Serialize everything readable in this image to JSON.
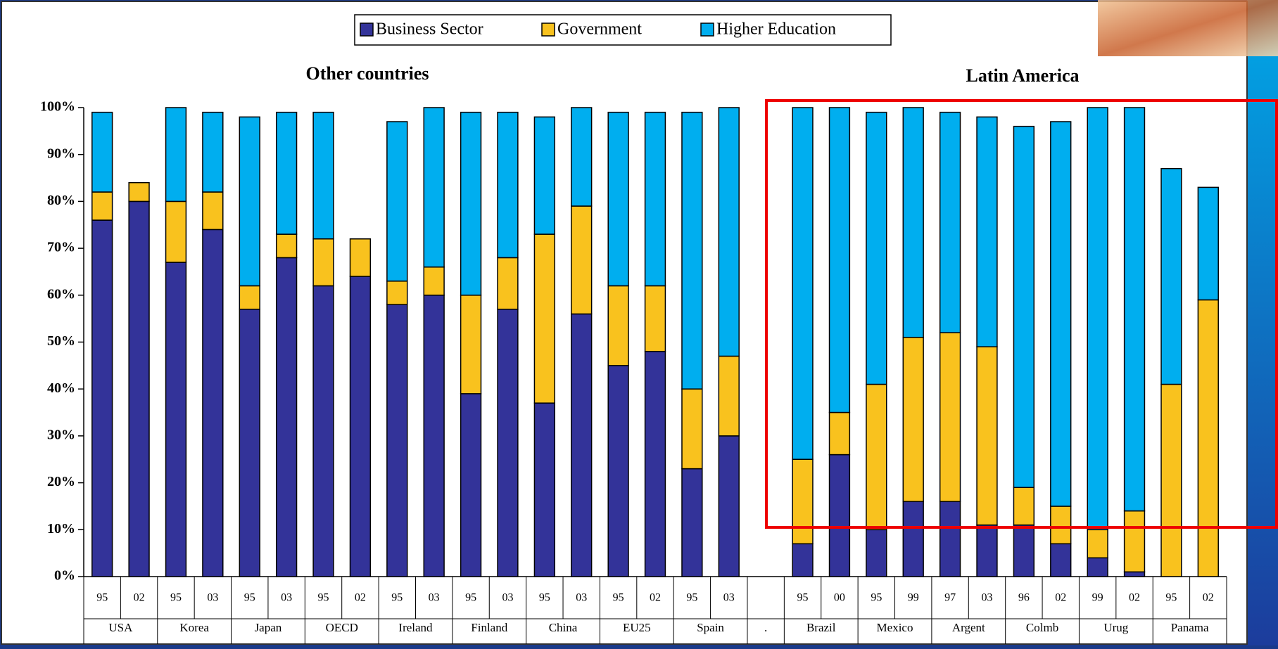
{
  "chart_data": {
    "type": "stacked_bar",
    "legend_position": "top",
    "section_titles": [
      "Other countries",
      "Latin America"
    ],
    "groups": [
      {
        "label": "USA",
        "years": [
          "95",
          "02"
        ]
      },
      {
        "label": "Korea",
        "years": [
          "95",
          "03"
        ]
      },
      {
        "label": "Japan",
        "years": [
          "95",
          "03"
        ]
      },
      {
        "label": "OECD",
        "years": [
          "95",
          "02"
        ]
      },
      {
        "label": "Ireland",
        "years": [
          "95",
          "03"
        ]
      },
      {
        "label": "Finland",
        "years": [
          "95",
          "03"
        ]
      },
      {
        "label": "China",
        "years": [
          "95",
          "03"
        ]
      },
      {
        "label": "EU25",
        "years": [
          "95",
          "02"
        ]
      },
      {
        "label": "Spain",
        "years": [
          "95",
          "03"
        ]
      },
      {
        "label": ".",
        "years": [
          null
        ]
      },
      {
        "label": "Brazil",
        "years": [
          "95",
          "00"
        ]
      },
      {
        "label": "Mexico",
        "years": [
          "95",
          "99"
        ]
      },
      {
        "label": "Argent",
        "years": [
          "97",
          "03"
        ]
      },
      {
        "label": "Colmb",
        "years": [
          "96",
          "02"
        ]
      },
      {
        "label": "Urug",
        "years": [
          "99",
          "02"
        ]
      },
      {
        "label": "Panama",
        "years": [
          "95",
          "02"
        ]
      }
    ],
    "series": [
      {
        "name": "Business Sector",
        "color": "#333399",
        "values": [
          76,
          80,
          67,
          74,
          57,
          68,
          62,
          64,
          58,
          60,
          39,
          57,
          37,
          56,
          45,
          48,
          23,
          30,
          null,
          7,
          26,
          10,
          16,
          16,
          11,
          11,
          7,
          4,
          1,
          0,
          0
        ]
      },
      {
        "name": "Government",
        "color": "#F9C21E",
        "values": [
          6,
          4,
          13,
          8,
          5,
          5,
          10,
          8,
          5,
          6,
          21,
          11,
          36,
          23,
          17,
          14,
          17,
          17,
          null,
          18,
          9,
          31,
          35,
          36,
          38,
          8,
          8,
          6,
          13,
          41,
          59
        ]
      },
      {
        "name": "Higher Education",
        "color": "#00AEEF",
        "values": [
          17,
          0,
          20,
          17,
          36,
          26,
          27,
          0,
          34,
          34,
          39,
          31,
          25,
          21,
          37,
          37,
          59,
          53,
          null,
          75,
          65,
          58,
          49,
          47,
          49,
          77,
          82,
          90,
          86,
          46,
          24
        ]
      }
    ],
    "ylim": [
      0,
      100
    ],
    "yticks": [
      {
        "value": 0,
        "label": "0%"
      },
      {
        "value": 10,
        "label": "10%"
      },
      {
        "value": 20,
        "label": "20%"
      },
      {
        "value": 30,
        "label": "30%"
      },
      {
        "value": 40,
        "label": "40%"
      },
      {
        "value": 50,
        "label": "50%"
      },
      {
        "value": 60,
        "label": "60%"
      },
      {
        "value": 70,
        "label": "70%"
      },
      {
        "value": 80,
        "label": "80%"
      },
      {
        "value": 90,
        "label": "90%"
      },
      {
        "value": 100,
        "label": "100%"
      }
    ]
  }
}
